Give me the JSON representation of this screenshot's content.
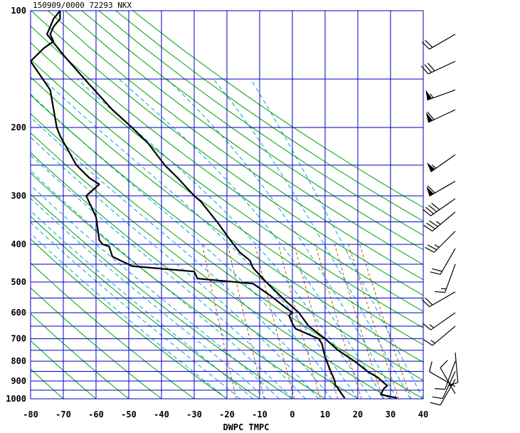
{
  "chart_data": {
    "type": "line",
    "title": "150909/0000 72293  NKX",
    "xlabel": "DWPC TMPC",
    "x_range": [
      -80,
      40
    ],
    "y_range": [
      1000,
      100
    ],
    "y_scale": "log",
    "x_ticks": [
      "-80",
      "-70",
      "-60",
      "-50",
      "-40",
      "-30",
      "-20",
      "-10",
      "0",
      "10",
      "20",
      "30",
      "40"
    ],
    "y_ticks": [
      "100",
      "200",
      "300",
      "400",
      "500",
      "600",
      "700",
      "800",
      "900",
      "1000"
    ],
    "y_tick_values": [
      100,
      200,
      300,
      400,
      500,
      600,
      700,
      800,
      900,
      1000
    ],
    "pressure_grid": [
      100,
      150,
      200,
      250,
      300,
      350,
      400,
      450,
      500,
      550,
      600,
      650,
      700,
      750,
      800,
      850,
      900,
      950,
      1000
    ],
    "colors": {
      "grid": "#0000c8",
      "dry_adiabat": "#00a000",
      "moist_adiabat": "#00a0e0",
      "mixing_ratio": "#c06000",
      "profile": "#000000"
    },
    "series": [
      {
        "key": "temperature",
        "points": [
          [
            32,
            995
          ],
          [
            27,
            975
          ],
          [
            28,
            940
          ],
          [
            29,
            925
          ],
          [
            26,
            880
          ],
          [
            23,
            850
          ],
          [
            19,
            800
          ],
          [
            14,
            750
          ],
          [
            10,
            700
          ],
          [
            5,
            650
          ],
          [
            2,
            600
          ],
          [
            -2,
            560
          ],
          [
            -7,
            510
          ],
          [
            -8,
            500
          ],
          [
            -10,
            480
          ],
          [
            -12,
            460
          ],
          [
            -13,
            440
          ],
          [
            -16,
            420
          ],
          [
            -18,
            400
          ],
          [
            -23,
            350
          ],
          [
            -28,
            310
          ],
          [
            -30,
            300
          ],
          [
            -35,
            270
          ],
          [
            -39,
            250
          ],
          [
            -44,
            220
          ],
          [
            -49,
            200
          ],
          [
            -55,
            180
          ],
          [
            -62,
            155
          ],
          [
            -70,
            130
          ],
          [
            -75,
            115
          ],
          [
            -74,
            110
          ],
          [
            -73,
            105
          ],
          [
            -71,
            100
          ]
        ]
      },
      {
        "key": "dewpoint",
        "points": [
          [
            16,
            995
          ],
          [
            15,
            970
          ],
          [
            14,
            940
          ],
          [
            13,
            920
          ],
          [
            13,
            900
          ],
          [
            12,
            860
          ],
          [
            11,
            820
          ],
          [
            10,
            780
          ],
          [
            9,
            720
          ],
          [
            8,
            700
          ],
          [
            1,
            660
          ],
          [
            0,
            640
          ],
          [
            -1,
            610
          ],
          [
            0,
            600
          ],
          [
            -7,
            540
          ],
          [
            -12,
            505
          ],
          [
            -29,
            490
          ],
          [
            -30,
            470
          ],
          [
            -49,
            455
          ],
          [
            -55,
            430
          ],
          [
            -56,
            405
          ],
          [
            -58,
            400
          ],
          [
            -59,
            390
          ],
          [
            -60,
            340
          ],
          [
            -63,
            300
          ],
          [
            -59,
            280
          ],
          [
            -62,
            270
          ],
          [
            -66,
            250
          ],
          [
            -71,
            210
          ],
          [
            -72,
            200
          ],
          [
            -74,
            160
          ],
          [
            -80,
            135
          ],
          [
            -76,
            125
          ],
          [
            -73,
            120
          ],
          [
            -74,
            115
          ],
          [
            -73,
            110
          ],
          [
            -71,
            105
          ],
          [
            -71,
            100
          ]
        ]
      }
    ],
    "wind_barbs": [
      {
        "p": 115,
        "speed": 20,
        "dir": 240
      },
      {
        "p": 135,
        "speed": 30,
        "dir": 245
      },
      {
        "p": 160,
        "speed": 55,
        "dir": 250
      },
      {
        "p": 180,
        "speed": 60,
        "dir": 245
      },
      {
        "p": 235,
        "speed": 55,
        "dir": 235
      },
      {
        "p": 275,
        "speed": 60,
        "dir": 240
      },
      {
        "p": 305,
        "speed": 40,
        "dir": 235
      },
      {
        "p": 330,
        "speed": 35,
        "dir": 230
      },
      {
        "p": 370,
        "speed": 25,
        "dir": 225
      },
      {
        "p": 410,
        "speed": 20,
        "dir": 210
      },
      {
        "p": 450,
        "speed": 15,
        "dir": 200
      },
      {
        "p": 530,
        "speed": 20,
        "dir": 240
      },
      {
        "p": 600,
        "speed": 15,
        "dir": 235
      },
      {
        "p": 650,
        "speed": 15,
        "dir": 230
      },
      {
        "p": 760,
        "speed": 10,
        "dir": 175
      },
      {
        "p": 800,
        "speed": 10,
        "dir": 200
      },
      {
        "p": 850,
        "speed": 10,
        "dir": 205
      },
      {
        "p": 890,
        "speed": 10,
        "dir": 210
      },
      {
        "p": 930,
        "speed": 10,
        "dir": 300
      },
      {
        "p": 970,
        "speed": 10,
        "dir": 330
      }
    ]
  }
}
